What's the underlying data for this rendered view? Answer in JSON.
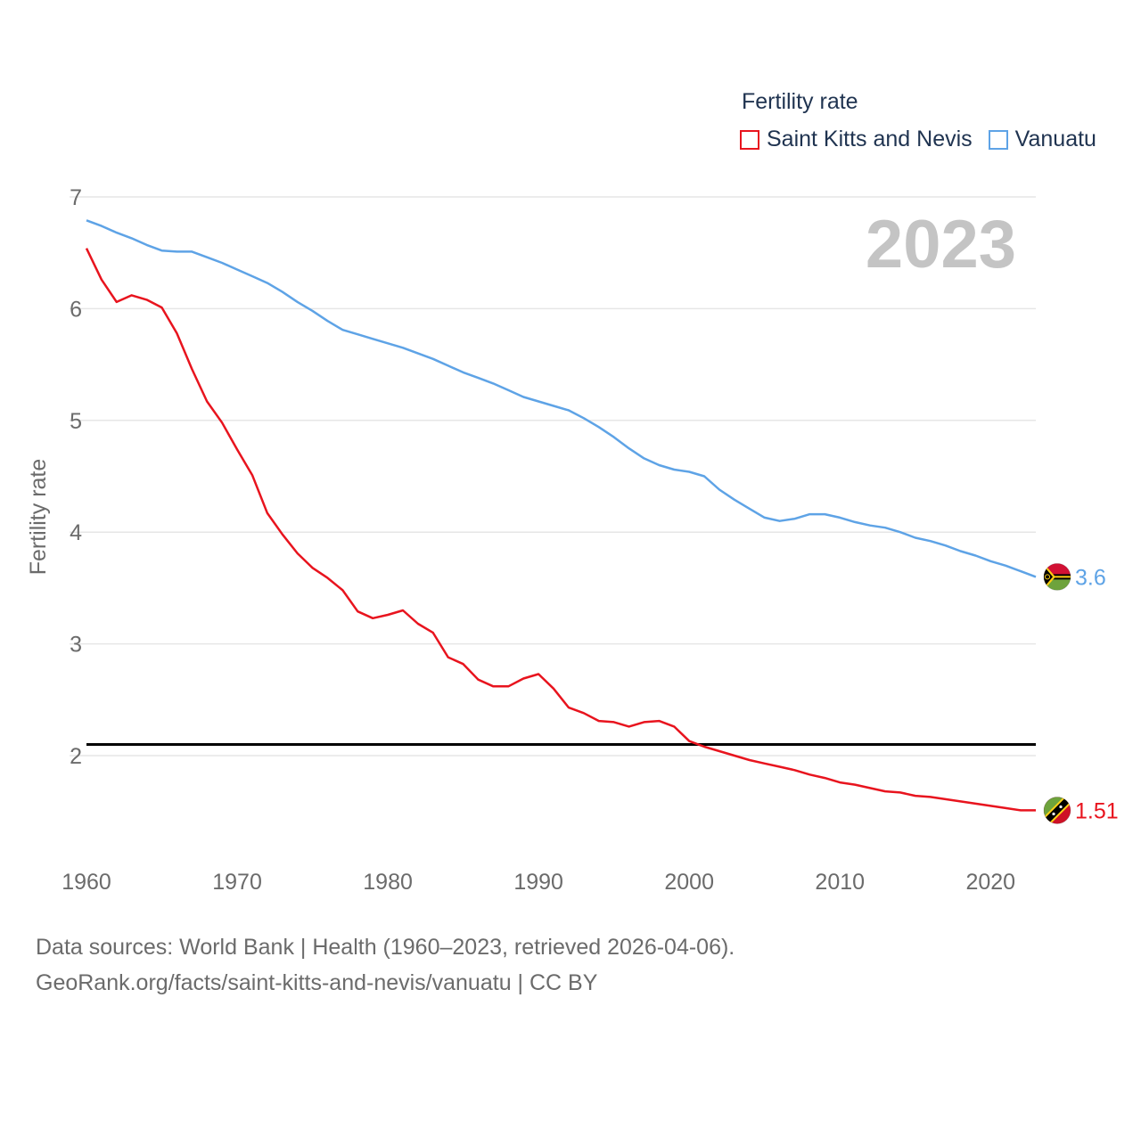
{
  "chart_data": {
    "type": "line",
    "title": "Fertility rate",
    "year_label": "2023",
    "xlabel": "",
    "ylabel": "Fertility rate",
    "xlim": [
      1960,
      2023
    ],
    "ylim": [
      1.2,
      7.0
    ],
    "x_ticks": [
      1960,
      1970,
      1980,
      1990,
      2000,
      2010,
      2020
    ],
    "y_ticks": [
      2,
      3,
      4,
      5,
      6,
      7
    ],
    "reference_line": 2.1,
    "x": [
      1960,
      1961,
      1962,
      1963,
      1964,
      1965,
      1966,
      1967,
      1968,
      1969,
      1970,
      1971,
      1972,
      1973,
      1974,
      1975,
      1976,
      1977,
      1978,
      1979,
      1980,
      1981,
      1982,
      1983,
      1984,
      1985,
      1986,
      1987,
      1988,
      1989,
      1990,
      1991,
      1992,
      1993,
      1994,
      1995,
      1996,
      1997,
      1998,
      1999,
      2000,
      2001,
      2002,
      2003,
      2004,
      2005,
      2006,
      2007,
      2008,
      2009,
      2010,
      2011,
      2012,
      2013,
      2014,
      2015,
      2016,
      2017,
      2018,
      2019,
      2020,
      2021,
      2022,
      2023
    ],
    "series": [
      {
        "name": "Saint Kitts and Nevis",
        "color": "#e8141e",
        "end_label": "1.51",
        "values": [
          6.54,
          6.26,
          6.06,
          6.12,
          6.08,
          6.01,
          5.78,
          5.46,
          5.17,
          4.98,
          4.74,
          4.51,
          4.17,
          3.98,
          3.81,
          3.68,
          3.59,
          3.48,
          3.29,
          3.23,
          3.26,
          3.3,
          3.18,
          3.1,
          2.88,
          2.82,
          2.68,
          2.62,
          2.62,
          2.69,
          2.73,
          2.6,
          2.43,
          2.38,
          2.31,
          2.3,
          2.26,
          2.3,
          2.31,
          2.26,
          2.13,
          2.08,
          2.04,
          2.0,
          1.96,
          1.93,
          1.9,
          1.87,
          1.83,
          1.8,
          1.76,
          1.74,
          1.71,
          1.68,
          1.67,
          1.64,
          1.63,
          1.61,
          1.59,
          1.57,
          1.55,
          1.53,
          1.51,
          1.51
        ]
      },
      {
        "name": "Vanuatu",
        "color": "#5ea3e6",
        "end_label": "3.6",
        "values": [
          6.79,
          6.74,
          6.68,
          6.63,
          6.57,
          6.52,
          6.51,
          6.51,
          6.46,
          6.41,
          6.35,
          6.29,
          6.23,
          6.15,
          6.06,
          5.98,
          5.89,
          5.81,
          5.77,
          5.73,
          5.69,
          5.65,
          5.6,
          5.55,
          5.49,
          5.43,
          5.38,
          5.33,
          5.27,
          5.21,
          5.17,
          5.13,
          5.09,
          5.02,
          4.94,
          4.85,
          4.75,
          4.66,
          4.6,
          4.56,
          4.54,
          4.5,
          4.38,
          4.29,
          4.21,
          4.13,
          4.1,
          4.12,
          4.16,
          4.16,
          4.13,
          4.09,
          4.06,
          4.04,
          4.0,
          3.95,
          3.92,
          3.88,
          3.83,
          3.79,
          3.74,
          3.7,
          3.65,
          3.6
        ]
      }
    ]
  },
  "footer": {
    "line1": "Data sources: World Bank | Health (1960–2023, retrieved 2026-04-06).",
    "line2": "GeoRank.org/facts/saint-kitts-and-nevis/vanuatu | CC BY"
  },
  "icons": {
    "saint_kitts_and_nevis": "saint-kitts-and-nevis-flag-icon",
    "vanuatu": "vanuatu-flag-icon"
  }
}
